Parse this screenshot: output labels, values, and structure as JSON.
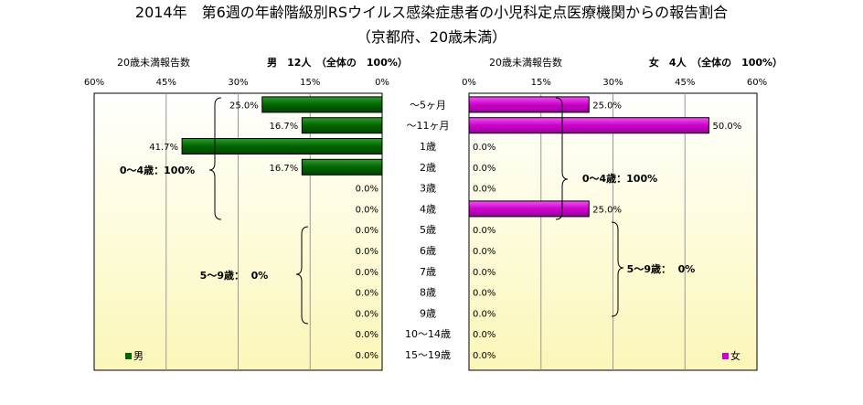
{
  "title": "2014年　第6週の年齢階級別RSウイルス感染症患者の小児科定点医療機関からの報告割合",
  "subtitle": "（京都府、20歳未満）",
  "chart_data": [
    {
      "type": "bar",
      "orientation": "horizontal",
      "direction": "right-to-left",
      "panel": "male",
      "header_left": "20歳未満報告数",
      "header_right": "男　12人　（全体の　100%）",
      "x_ticks": [
        "60%",
        "45%",
        "30%",
        "15%",
        "0%"
      ],
      "xlim": [
        0,
        60
      ],
      "unit": "%",
      "categories": [
        "～5ヶ月",
        "～11ヶ月",
        "1歳",
        "2歳",
        "3歳",
        "4歳",
        "5歳",
        "6歳",
        "7歳",
        "8歳",
        "9歳",
        "10～14歳",
        "15～19歳"
      ],
      "values": [
        25.0,
        16.7,
        41.7,
        16.7,
        0.0,
        0.0,
        0.0,
        0.0,
        0.0,
        0.0,
        0.0,
        0.0,
        0.0
      ],
      "value_labels": [
        "25.0%",
        "16.7%",
        "41.7%",
        "16.7%",
        "0.0%",
        "0.0%",
        "0.0%",
        "0.0%",
        "0.0%",
        "0.0%",
        "0.0%",
        "0.0%",
        "0.0%"
      ],
      "color": "#006600",
      "legend": "男",
      "legend_position": "bottom-left",
      "grid": true,
      "annotations": [
        "0～4歳：100%",
        "5～9歳：  0%"
      ]
    },
    {
      "type": "bar",
      "orientation": "horizontal",
      "direction": "left-to-right",
      "panel": "female",
      "header_left": "20歳未満報告数",
      "header_right": "女　4人　（全体の　100%）",
      "x_ticks": [
        "0%",
        "15%",
        "30%",
        "45%",
        "60%"
      ],
      "xlim": [
        0,
        60
      ],
      "unit": "%",
      "categories": [
        "～5ヶ月",
        "～11ヶ月",
        "1歳",
        "2歳",
        "3歳",
        "4歳",
        "5歳",
        "6歳",
        "7歳",
        "8歳",
        "9歳",
        "10～14歳",
        "15～19歳"
      ],
      "values": [
        25.0,
        50.0,
        0.0,
        0.0,
        0.0,
        25.0,
        0.0,
        0.0,
        0.0,
        0.0,
        0.0,
        0.0,
        0.0
      ],
      "value_labels": [
        "25.0%",
        "50.0%",
        "0.0%",
        "0.0%",
        "0.0%",
        "25.0%",
        "0.0%",
        "0.0%",
        "0.0%",
        "0.0%",
        "0.0%",
        "0.0%",
        "0.0%"
      ],
      "color": "#cc00cc",
      "legend": "女",
      "legend_position": "bottom-right",
      "grid": true,
      "annotations": [
        "0～4歳：100%",
        "5～9歳：  0%"
      ]
    }
  ]
}
